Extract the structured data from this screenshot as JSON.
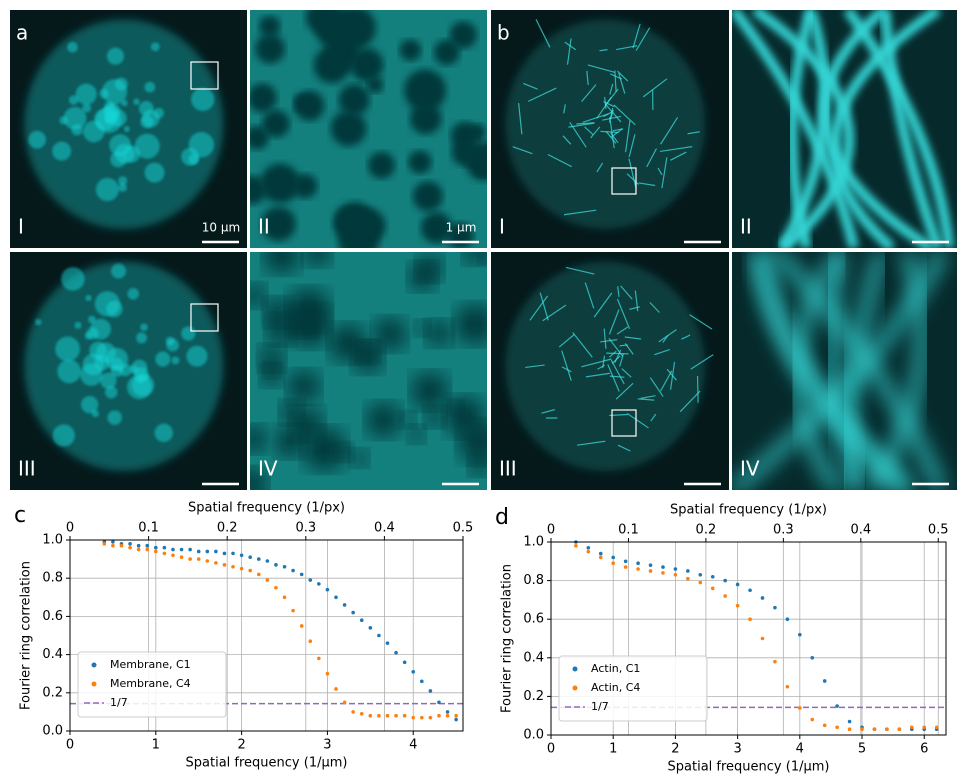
{
  "images": [
    {
      "panel": "a",
      "tiles": [
        "I",
        "II",
        "III",
        "IV"
      ],
      "scale_bars": [
        "10 µm",
        "1 µm"
      ]
    },
    {
      "panel": "b",
      "tiles": [
        "I",
        "II",
        "III",
        "IV"
      ]
    }
  ],
  "chart_data": [
    {
      "type": "scatter",
      "panel_label": "c",
      "title": "Spatial frequency (1/px)",
      "xlabel": "Spatial frequency (1/μm)",
      "ylabel": "Fourier ring correlation",
      "xlim": [
        0,
        4.58
      ],
      "xticks": [
        0,
        1,
        2,
        3,
        4
      ],
      "x2lim": [
        0,
        0.5
      ],
      "x2ticks": [
        0,
        0.1,
        0.2,
        0.3,
        0.4,
        0.5
      ],
      "ylim": [
        0,
        1
      ],
      "yticks": [
        {
          "value": 0,
          "label": "0.0"
        },
        0.2,
        0.4,
        0.6,
        0.8,
        {
          "value": 1,
          "label": "1.0"
        }
      ],
      "grid": true,
      "legend": "lower left",
      "x": [
        0.4,
        0.5,
        0.6,
        0.7,
        0.8,
        0.9,
        1.0,
        1.1,
        1.2,
        1.3,
        1.4,
        1.5,
        1.6,
        1.7,
        1.8,
        1.9,
        2.0,
        2.1,
        2.2,
        2.3,
        2.4,
        2.5,
        2.6,
        2.7,
        2.8,
        2.9,
        3.0,
        3.1,
        3.2,
        3.3,
        3.4,
        3.5,
        3.6,
        3.7,
        3.8,
        3.9,
        4.0,
        4.1,
        4.2,
        4.3,
        4.4,
        4.5
      ],
      "series": [
        {
          "name": "Membrane, C1",
          "color": "#1f77b4",
          "values": [
            0.99,
            0.99,
            0.98,
            0.98,
            0.97,
            0.97,
            0.96,
            0.96,
            0.95,
            0.95,
            0.95,
            0.94,
            0.94,
            0.94,
            0.93,
            0.93,
            0.92,
            0.91,
            0.9,
            0.89,
            0.87,
            0.86,
            0.84,
            0.82,
            0.79,
            0.77,
            0.74,
            0.7,
            0.66,
            0.62,
            0.58,
            0.54,
            0.5,
            0.46,
            0.41,
            0.36,
            0.31,
            0.26,
            0.21,
            0.15,
            0.1,
            0.06
          ]
        },
        {
          "name": "Membrane, C4",
          "color": "#ff7f0e",
          "values": [
            0.98,
            0.97,
            0.97,
            0.96,
            0.95,
            0.95,
            0.94,
            0.93,
            0.92,
            0.91,
            0.9,
            0.9,
            0.89,
            0.88,
            0.87,
            0.86,
            0.85,
            0.84,
            0.82,
            0.79,
            0.75,
            0.7,
            0.63,
            0.55,
            0.47,
            0.38,
            0.3,
            0.22,
            0.15,
            0.1,
            0.09,
            0.08,
            0.08,
            0.08,
            0.08,
            0.08,
            0.07,
            0.07,
            0.07,
            0.08,
            0.08,
            0.08
          ]
        }
      ],
      "threshold": {
        "name": "1/7",
        "value": 0.143,
        "color": "#9467bd"
      }
    },
    {
      "type": "scatter",
      "panel_label": "d",
      "title": "Spatial frequency (1/px)",
      "xlabel": "Spatial frequency (1/μm)",
      "ylabel": "Fourier ring correlation",
      "xlim": [
        0,
        6.35
      ],
      "xticks": [
        0,
        1,
        2,
        3,
        4,
        5,
        6
      ],
      "x2lim": [
        0,
        0.51
      ],
      "x2ticks": [
        0,
        0.1,
        0.2,
        0.3,
        0.4,
        0.5
      ],
      "ylim": [
        0,
        1
      ],
      "yticks": [
        {
          "value": 0,
          "label": "0.0"
        },
        0.2,
        0.4,
        0.6,
        0.8,
        {
          "value": 1,
          "label": "1.0"
        }
      ],
      "grid": true,
      "legend": "lower left",
      "x": [
        0.4,
        0.6,
        0.8,
        1.0,
        1.2,
        1.4,
        1.6,
        1.8,
        2.0,
        2.2,
        2.4,
        2.6,
        2.8,
        3.0,
        3.2,
        3.4,
        3.6,
        3.8,
        4.0,
        4.2,
        4.4,
        4.6,
        4.8,
        5.0,
        5.2,
        5.4,
        5.6,
        5.8,
        6.0,
        6.2
      ],
      "series": [
        {
          "name": "Actin, C1",
          "color": "#1f77b4",
          "values": [
            1.0,
            0.97,
            0.94,
            0.92,
            0.9,
            0.89,
            0.88,
            0.87,
            0.86,
            0.85,
            0.83,
            0.82,
            0.8,
            0.78,
            0.75,
            0.71,
            0.66,
            0.6,
            0.52,
            0.4,
            0.28,
            0.15,
            0.07,
            0.04,
            0.03,
            0.03,
            0.03,
            0.03,
            0.03,
            0.03
          ]
        },
        {
          "name": "Actin, C4",
          "color": "#ff7f0e",
          "values": [
            0.98,
            0.95,
            0.92,
            0.89,
            0.87,
            0.86,
            0.85,
            0.84,
            0.83,
            0.81,
            0.79,
            0.76,
            0.72,
            0.67,
            0.6,
            0.5,
            0.38,
            0.25,
            0.14,
            0.08,
            0.05,
            0.04,
            0.03,
            0.03,
            0.03,
            0.03,
            0.03,
            0.04,
            0.04,
            0.04
          ]
        }
      ],
      "threshold": {
        "name": "1/7",
        "value": 0.143,
        "color": "#9467bd"
      }
    }
  ]
}
